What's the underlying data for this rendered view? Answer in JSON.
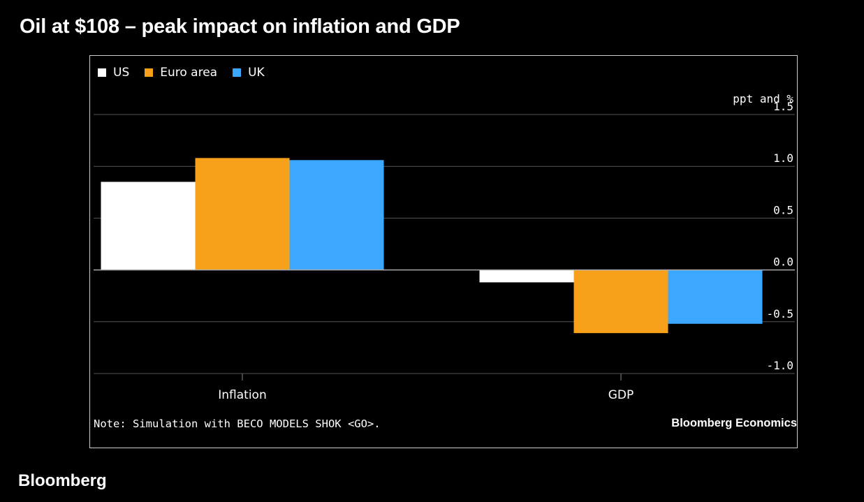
{
  "headline": "Oil at $108 – peak impact on inflation and GDP",
  "brand": "Bloomberg",
  "note": "Note: Simulation with BECO MODELS SHOK <GO>.",
  "source": "Bloomberg Economics",
  "colors": {
    "US": "#ffffff",
    "Euro area": "#f7a11a",
    "UK": "#3ba7ff",
    "grid": "#555555",
    "zero": "#aaaaaa",
    "axis": "#888888"
  },
  "chart_data": {
    "type": "bar",
    "title": "Oil at $108 – peak impact on inflation and GDP",
    "categories": [
      "Inflation",
      "GDP"
    ],
    "series": [
      {
        "name": "US",
        "values": [
          0.85,
          -0.12
        ]
      },
      {
        "name": "Euro area",
        "values": [
          1.08,
          -0.61
        ]
      },
      {
        "name": "UK",
        "values": [
          1.06,
          -0.52
        ]
      }
    ],
    "ylabel": "ppt and %",
    "ylim": [
      -1.0,
      1.5
    ],
    "yticks": [
      1.5,
      1.0,
      0.5,
      0.0,
      -0.5,
      -1.0
    ],
    "ytick_labels": [
      "1.5",
      "1.0",
      "0.5",
      "0.0",
      "-0.5",
      "-1.0"
    ],
    "legend": "top-left",
    "grid": true
  }
}
